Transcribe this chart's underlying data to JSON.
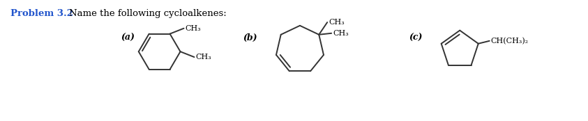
{
  "title_bold": "Problem 3.2",
  "title_normal": "Name the following cycloalkenes:",
  "background": "#ffffff",
  "label_a": "(a)",
  "label_b": "(b)",
  "label_c": "(c)",
  "title_color": "#2255cc",
  "text_color": "#000000",
  "line_color": "#333333",
  "lw": 1.4,
  "font_size_title": 9.5,
  "font_size_label": 9,
  "font_size_chem": 8
}
